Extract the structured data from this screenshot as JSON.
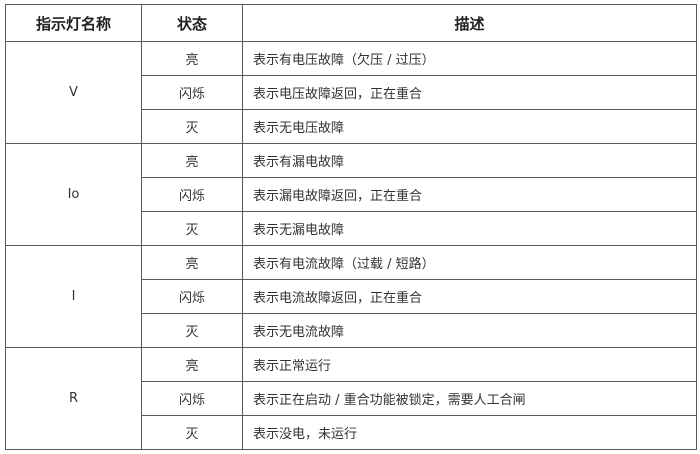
{
  "headers": [
    "指示灯名称",
    "状态",
    "描述"
  ],
  "groups": [
    {
      "name": "V",
      "rows": [
        {
          "state": "亮",
          "desc": "表示有电压故障（欠压 / 过压）"
        },
        {
          "state": "闪烁",
          "desc": "表示电压故障返回，正在重合"
        },
        {
          "state": "灭",
          "desc": "表示无电压故障"
        }
      ]
    },
    {
      "name": "Io",
      "rows": [
        {
          "state": "亮",
          "desc": "表示有漏电故障"
        },
        {
          "state": "闪烁",
          "desc": "表示漏电故障返回，正在重合"
        },
        {
          "state": "灭",
          "desc": "表示无漏电故障"
        }
      ]
    },
    {
      "name": "I",
      "rows": [
        {
          "state": "亮",
          "desc": "表示有电流故障（过载 / 短路）"
        },
        {
          "state": "闪烁",
          "desc": "表示电流故障返回，正在重合"
        },
        {
          "state": "灭",
          "desc": "表示无电流故障"
        }
      ]
    },
    {
      "name": "R",
      "rows": [
        {
          "state": "亮",
          "desc": "表示正常运行"
        },
        {
          "state": "闪烁",
          "desc": "表示正在启动 / 重合功能被锁定，需要人工合闸"
        },
        {
          "state": "灭",
          "desc": "表示没电，未运行"
        }
      ]
    }
  ]
}
